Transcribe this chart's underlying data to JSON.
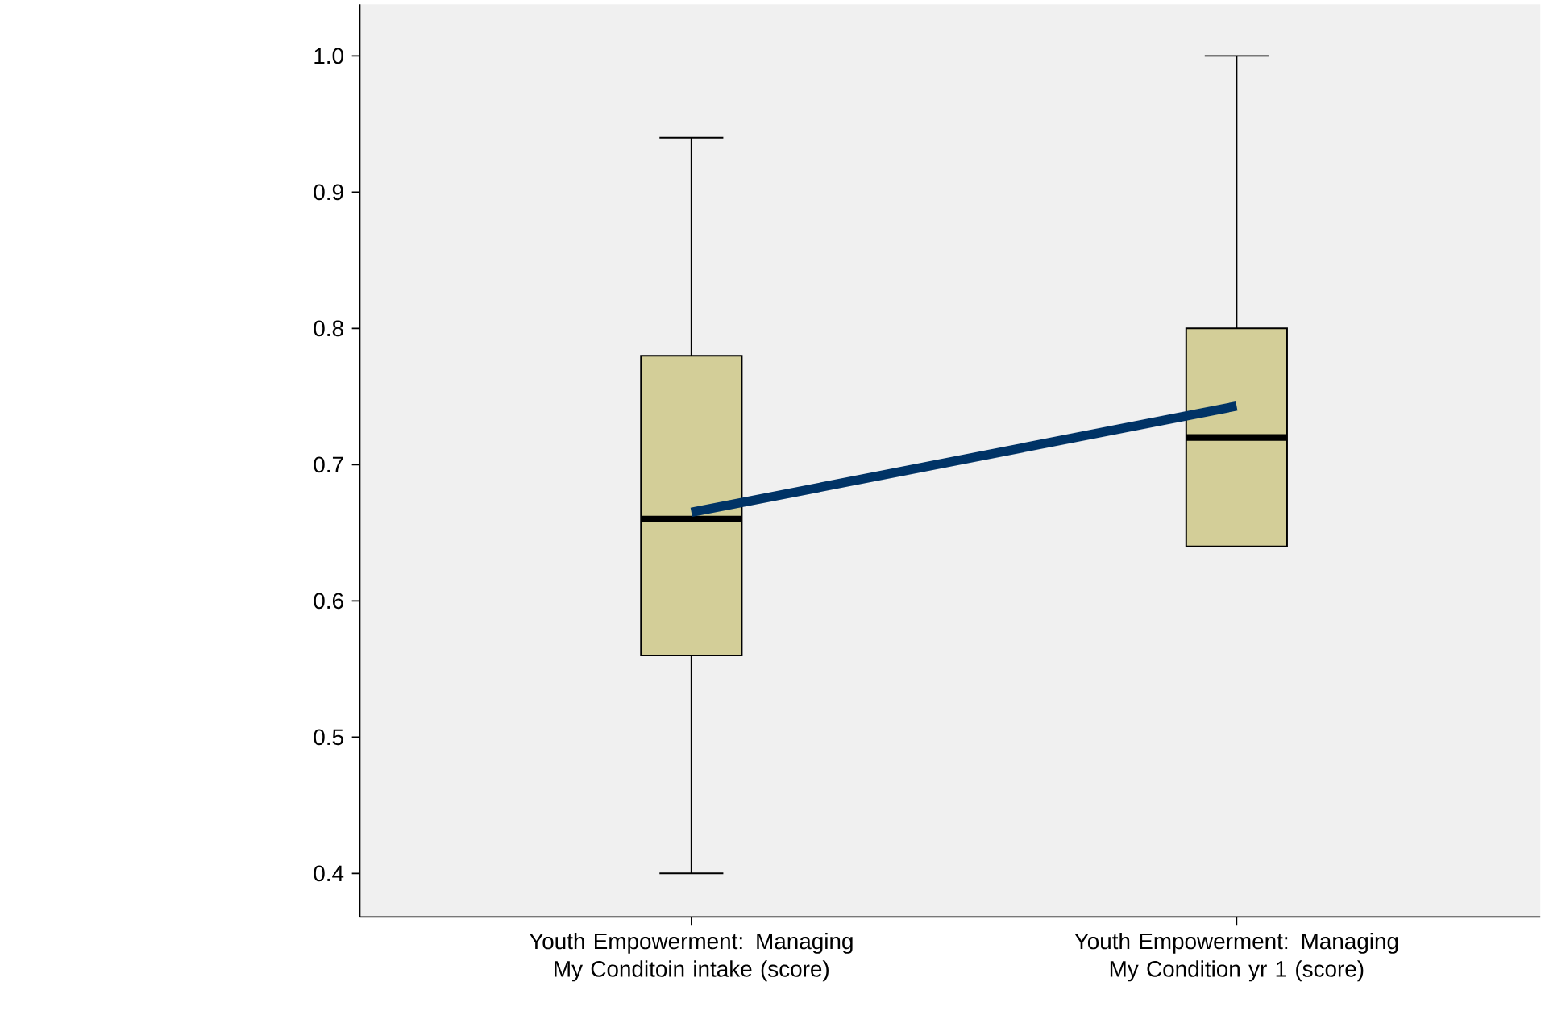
{
  "chart_data": {
    "type": "box",
    "categories": [
      "Youth Empowerment: Managing My Conditoin intake (score)",
      "Youth Empowerment: Managing My Condition yr 1 (score)"
    ],
    "color": "#d3ce98",
    "boxes": [
      {
        "low": 0.4,
        "q1": 0.56,
        "median": 0.66,
        "q3": 0.78,
        "high": 0.94
      },
      {
        "low": 0.64,
        "q1": 0.64,
        "median": 0.72,
        "q3": 0.8,
        "high": 1.0
      }
    ],
    "series": [
      {
        "type": "line",
        "color": "#003366",
        "values": [
          0.665,
          0.743
        ]
      }
    ],
    "ylim": [
      0.368,
      1.038
    ],
    "yticks": [
      0.4,
      0.5,
      0.6,
      0.7,
      0.8,
      0.9,
      {
        "value": 1.0,
        "label": "1.0"
      }
    ]
  }
}
